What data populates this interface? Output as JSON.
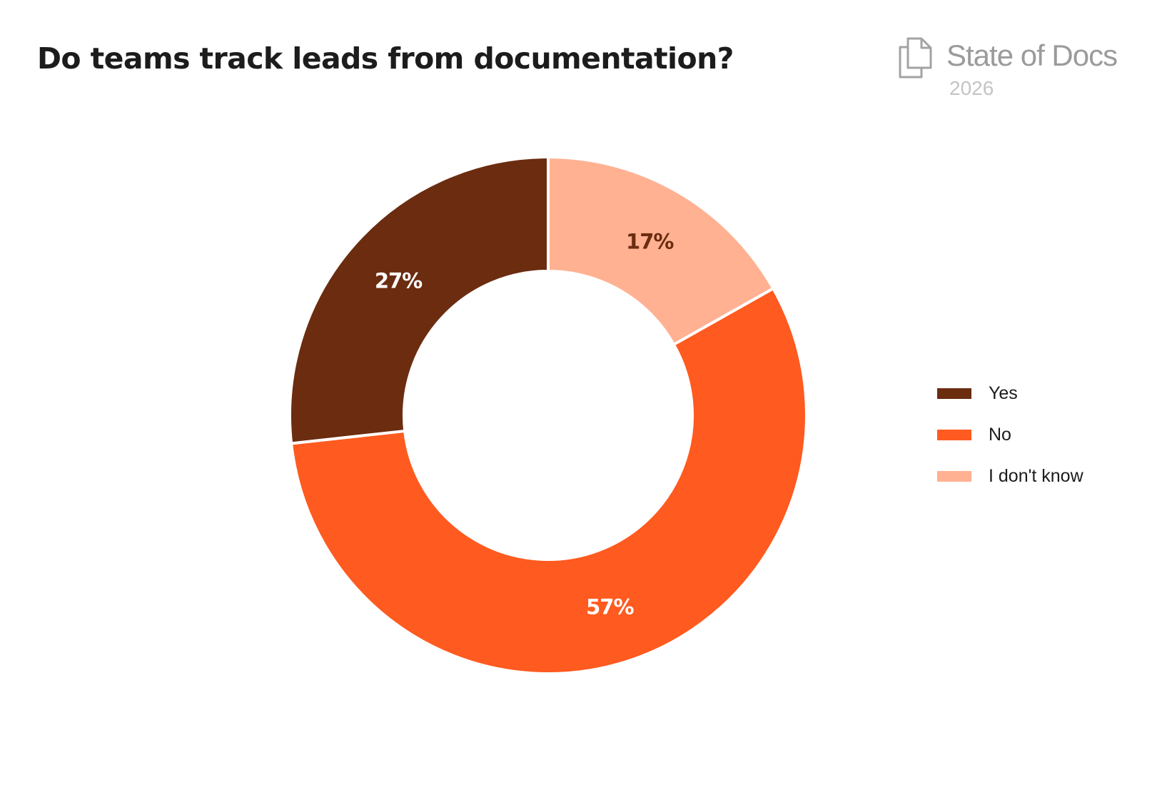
{
  "chart_data": {
    "type": "pie",
    "variant": "donut",
    "title": "Do teams track leads from documentation?",
    "categories": [
      "Yes",
      "No",
      "I don't know"
    ],
    "values": [
      27,
      57,
      17
    ],
    "labels": [
      "27%",
      "57%",
      "17%"
    ],
    "unit": "%",
    "colors": [
      "#6b2c10",
      "#ff5a1f",
      "#ffb192"
    ],
    "label_colors": [
      "#ffffff",
      "#ffffff",
      "#6b2c10"
    ],
    "slice_order": [
      "I don't know",
      "No",
      "Yes"
    ],
    "start": "top, clockwise",
    "legend_position": "right"
  },
  "brand": {
    "name": "State of Docs",
    "year": "2026",
    "icon": "stacked-documents-icon",
    "color": "#9b9b9b"
  }
}
